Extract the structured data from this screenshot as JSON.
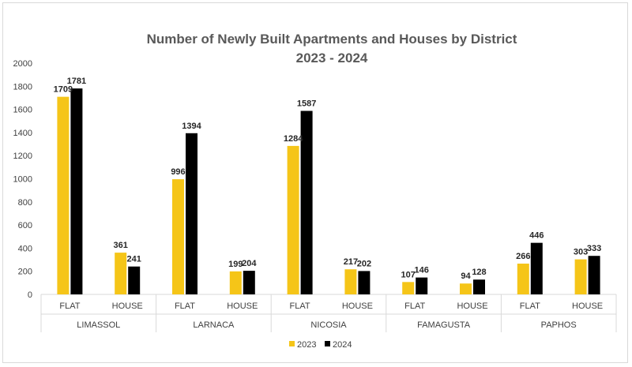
{
  "chart_data": {
    "type": "bar",
    "title": "Number of Newly Built Apartments and Houses by District",
    "subtitle": "2023 - 2024",
    "xlabel": "",
    "ylabel": "",
    "ylim": [
      0,
      2000
    ],
    "yticks": [
      "0",
      "200",
      "400",
      "600",
      "800",
      "1000",
      "1200",
      "1400",
      "1600",
      "1800",
      "2000"
    ],
    "grid": false,
    "legend_position": "bottom",
    "groups": [
      "LIMASSOL",
      "LARNACA",
      "NICOSIA",
      "FAMAGUSTA",
      "PAPHOS"
    ],
    "categories": [
      "FLAT",
      "HOUSE",
      "FLAT",
      "HOUSE",
      "FLAT",
      "HOUSE",
      "FLAT",
      "HOUSE",
      "FLAT",
      "HOUSE"
    ],
    "series": [
      {
        "name": "2023",
        "color": "#f5c518",
        "values": [
          1709,
          361,
          996,
          199,
          1284,
          217,
          107,
          94,
          266,
          303
        ]
      },
      {
        "name": "2024",
        "color": "#000000",
        "values": [
          1781,
          241,
          1394,
          204,
          1587,
          202,
          146,
          128,
          446,
          333
        ]
      }
    ]
  }
}
